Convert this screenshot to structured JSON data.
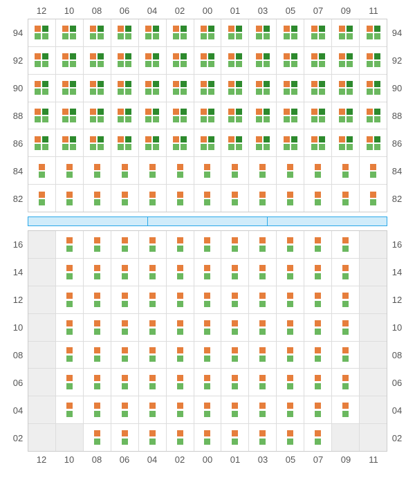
{
  "type": "seating-grid-diagram",
  "background_color": "#ffffff",
  "grid_border_color": "#cccccc",
  "cell_border_color": "#dddddd",
  "empty_cell_color": "#eeeeee",
  "label_color": "#555555",
  "label_fontsize": 13,
  "box_size": 9,
  "colors": {
    "orange": "#e67e3c",
    "green": "#6bb85f",
    "dark_green": "#2d8a2d"
  },
  "columns": [
    "12",
    "10",
    "08",
    "06",
    "04",
    "02",
    "00",
    "01",
    "03",
    "05",
    "07",
    "09",
    "11"
  ],
  "upper": {
    "rows": [
      "94",
      "92",
      "90",
      "88",
      "86",
      "84",
      "82"
    ],
    "cells": {
      "type4_rows": [
        "94",
        "92",
        "90",
        "88",
        "86"
      ],
      "type2_rows": [
        "84",
        "82"
      ]
    }
  },
  "divider": {
    "segments": 3,
    "border_color": "#2aa8e8",
    "fill_color": "#d0ecfa"
  },
  "lower": {
    "rows": [
      "16",
      "14",
      "12",
      "10",
      "08",
      "06",
      "04",
      "02"
    ],
    "empty_cells": [
      {
        "row": "16",
        "col": "12"
      },
      {
        "row": "16",
        "col": "11"
      },
      {
        "row": "14",
        "col": "12"
      },
      {
        "row": "14",
        "col": "11"
      },
      {
        "row": "12",
        "col": "12"
      },
      {
        "row": "12",
        "col": "11"
      },
      {
        "row": "10",
        "col": "12"
      },
      {
        "row": "10",
        "col": "11"
      },
      {
        "row": "08",
        "col": "12"
      },
      {
        "row": "08",
        "col": "11"
      },
      {
        "row": "06",
        "col": "12"
      },
      {
        "row": "06",
        "col": "11"
      },
      {
        "row": "04",
        "col": "12"
      },
      {
        "row": "04",
        "col": "11"
      },
      {
        "row": "02",
        "col": "12"
      },
      {
        "row": "02",
        "col": "10"
      },
      {
        "row": "02",
        "col": "09"
      },
      {
        "row": "02",
        "col": "11"
      }
    ]
  }
}
